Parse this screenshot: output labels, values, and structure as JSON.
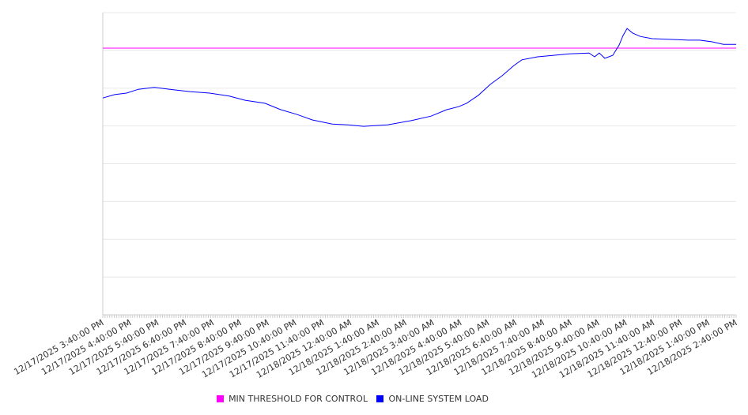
{
  "chart_data": {
    "type": "line",
    "title": "",
    "xlabel": "",
    "ylabel": "",
    "x_unit": "hours since 12/17/2025 3:40:00 PM",
    "xlim": [
      0,
      23
    ],
    "ylim": [
      0,
      8
    ],
    "grid": true,
    "legend_position": "bottom-center",
    "tick_labels": [
      "12/17/2025 3:40:00 PM",
      "12/17/2025 4:40:00 PM",
      "12/17/2025 5:40:00 PM",
      "12/17/2025 6:40:00 PM",
      "12/17/2025 7:40:00 PM",
      "12/17/2025 8:40:00 PM",
      "12/17/2025 9:40:00 PM",
      "12/17/2025 10:40:00 PM",
      "12/17/2025 11:40:00 PM",
      "12/18/2025 12:40:00 AM",
      "12/18/2025 1:40:00 AM",
      "12/18/2025 2:40:00 AM",
      "12/18/2025 3:40:00 AM",
      "12/18/2025 4:40:00 AM",
      "12/18/2025 5:40:00 AM",
      "12/18/2025 6:40:00 AM",
      "12/18/2025 7:40:00 AM",
      "12/18/2025 8:40:00 AM",
      "12/18/2025 9:40:00 AM",
      "12/18/2025 10:40:00 AM",
      "12/18/2025 11:40:00 AM",
      "12/18/2025 12:40:00 PM",
      "12/18/2025 1:40:00 PM",
      "12/18/2025 2:40:00 PM"
    ],
    "series": [
      {
        "name": "MIN THRESHOLD FOR CONTROL",
        "color": "#ff00ff",
        "x": [
          0,
          23
        ],
        "values": [
          7.06,
          7.06
        ]
      },
      {
        "name": "ON-LINE SYSTEM LOAD",
        "color": "#0000ff",
        "x": [
          0,
          0.43,
          0.86,
          1.29,
          1.87,
          2.44,
          3.16,
          3.88,
          4.59,
          5.17,
          5.89,
          6.46,
          7.03,
          7.61,
          8.33,
          8.9,
          9.47,
          10.34,
          11.2,
          11.92,
          12.49,
          12.92,
          13.21,
          13.64,
          14.07,
          14.5,
          14.93,
          15.22,
          15.79,
          16.37,
          16.94,
          17.66,
          17.86,
          18.03,
          18.23,
          18.52,
          18.75,
          18.89,
          19.04,
          19.24,
          19.52,
          19.95,
          20.67,
          21.25,
          21.68,
          22.11,
          22.54,
          23.0
        ],
        "values": [
          5.74,
          5.83,
          5.87,
          5.97,
          6.02,
          5.97,
          5.91,
          5.87,
          5.79,
          5.68,
          5.6,
          5.43,
          5.31,
          5.16,
          5.05,
          5.03,
          4.99,
          5.03,
          5.14,
          5.26,
          5.43,
          5.51,
          5.6,
          5.81,
          6.1,
          6.33,
          6.6,
          6.75,
          6.83,
          6.87,
          6.91,
          6.93,
          6.83,
          6.93,
          6.79,
          6.87,
          7.14,
          7.39,
          7.58,
          7.46,
          7.37,
          7.31,
          7.29,
          7.27,
          7.27,
          7.23,
          7.16,
          7.16
        ]
      }
    ]
  }
}
